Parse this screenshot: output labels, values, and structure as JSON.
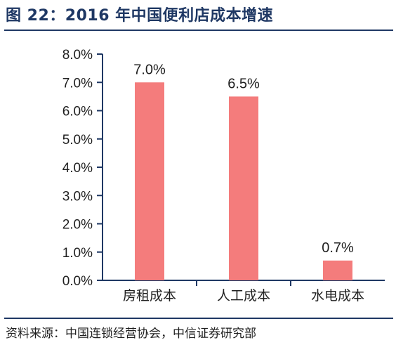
{
  "title": "图 22：2016 年中国便利店成本增速",
  "source": "资料来源：中国连锁经营协会，中信证券研究部",
  "colors": {
    "bar": "#f47c7c",
    "axis": "#1f3864",
    "rule": "#1f3864",
    "text": "#1f1f1f"
  },
  "chart_data": {
    "type": "bar",
    "title": "图 22：2016 年中国便利店成本增速",
    "categories": [
      "房租成本",
      "人工成本",
      "水电成本"
    ],
    "values": [
      7.0,
      6.5,
      0.7
    ],
    "data_labels": [
      "7.0%",
      "6.5%",
      "0.7%"
    ],
    "ylim": [
      0,
      8
    ],
    "yticks": [
      0,
      1,
      2,
      3,
      4,
      5,
      6,
      7,
      8
    ],
    "ytick_labels": [
      "0.0%",
      "1.0%",
      "2.0%",
      "3.0%",
      "4.0%",
      "5.0%",
      "6.0%",
      "7.0%",
      "8.0%"
    ],
    "xlabel": "",
    "ylabel": "",
    "grid": false,
    "legend": "none"
  }
}
